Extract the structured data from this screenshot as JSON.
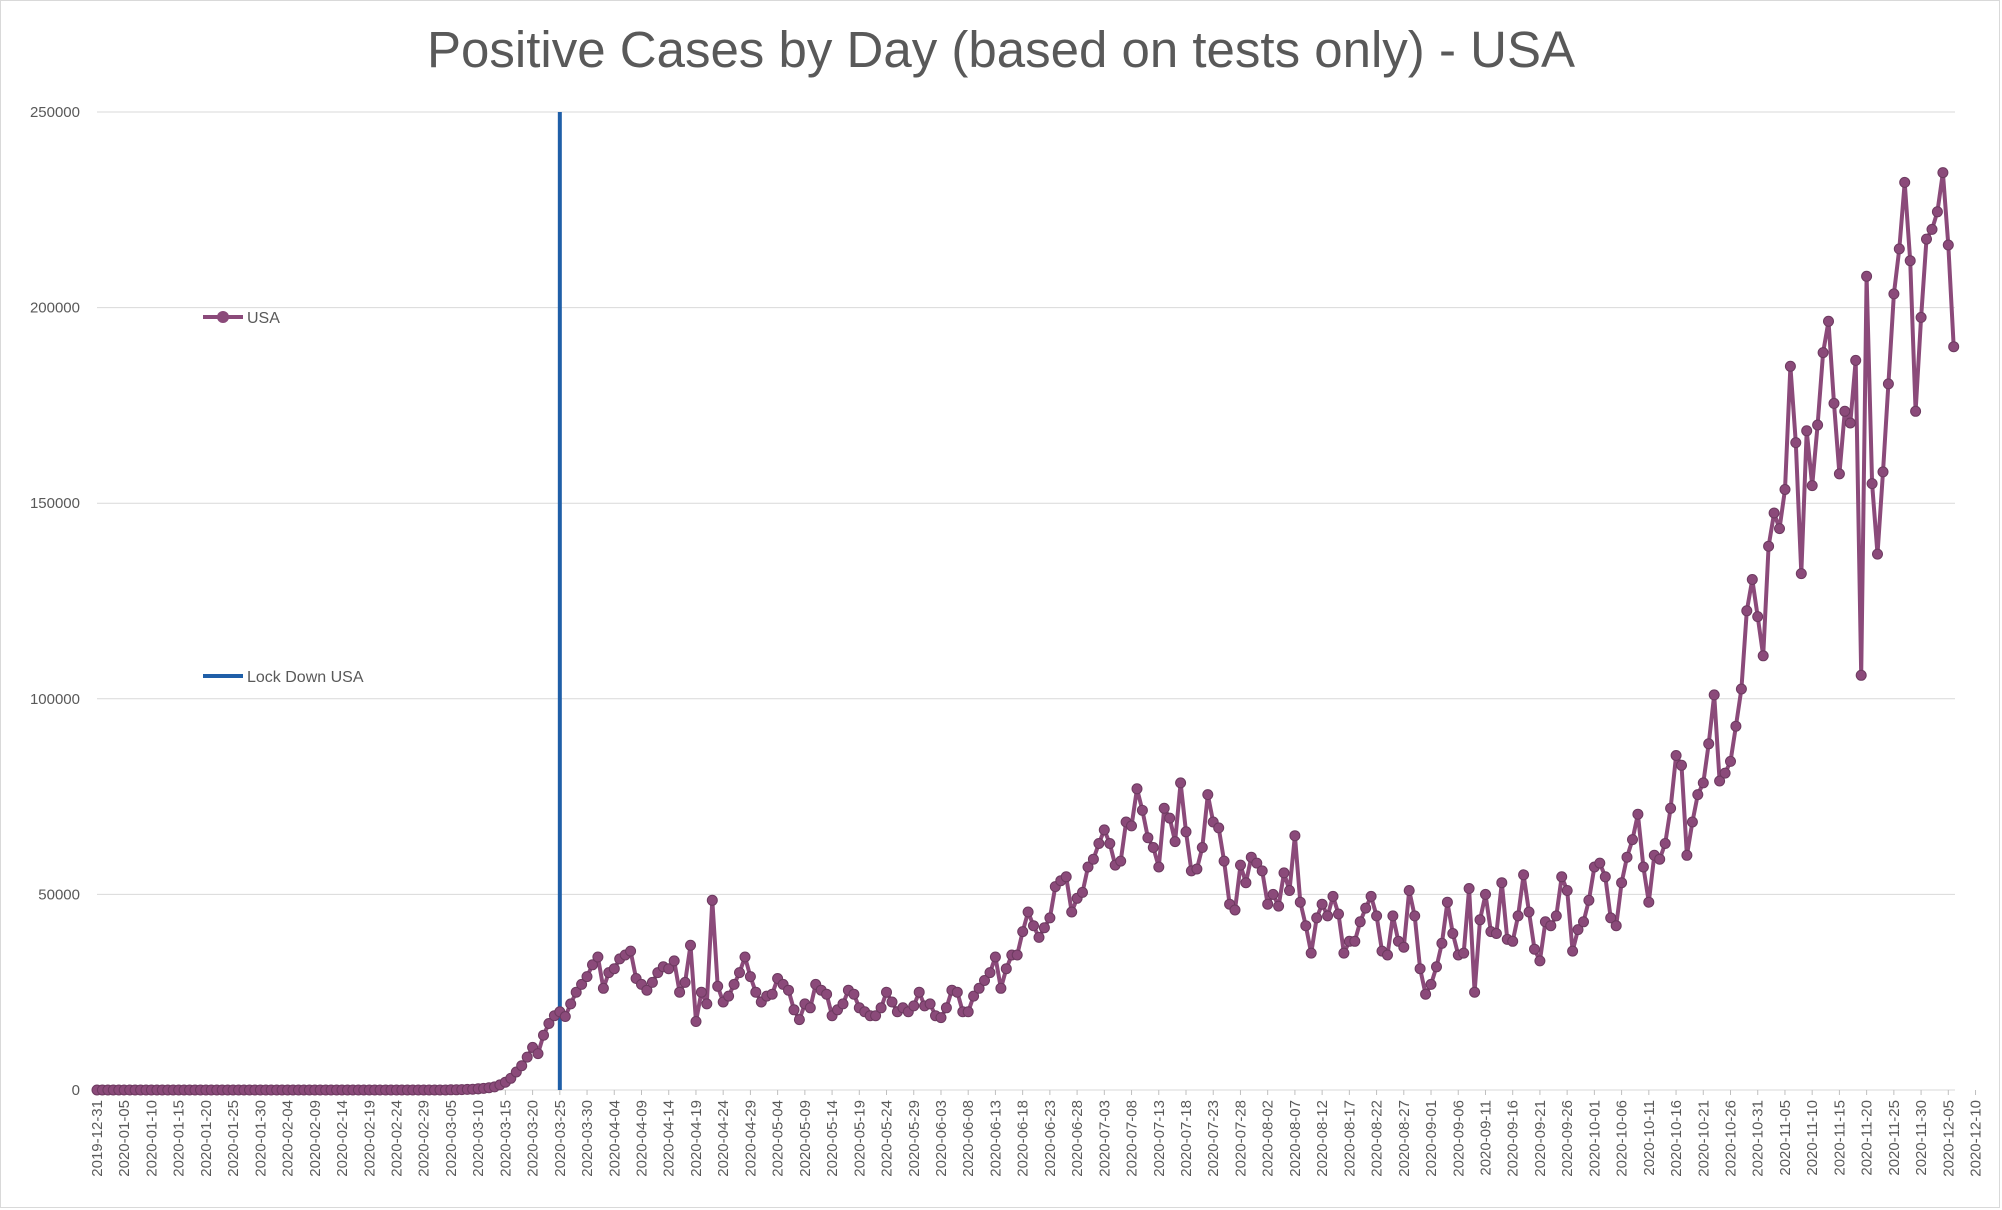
{
  "chart_data": {
    "type": "line",
    "title": "Positive Cases by Day (based on tests only) - USA",
    "xlabel": "",
    "ylabel": "",
    "ylim": [
      0,
      250000
    ],
    "y_ticks": [
      "0",
      "50000",
      "100000",
      "150000",
      "200000",
      "250000"
    ],
    "x_start": "2019-12-31",
    "x_ticks": [
      "2019-12-31",
      "2020-01-05",
      "2020-01-10",
      "2020-01-15",
      "2020-01-20",
      "2020-01-25",
      "2020-01-30",
      "2020-02-04",
      "2020-02-09",
      "2020-02-14",
      "2020-02-19",
      "2020-02-24",
      "2020-02-29",
      "2020-03-05",
      "2020-03-10",
      "2020-03-15",
      "2020-03-20",
      "2020-03-25",
      "2020-03-30",
      "2020-04-04",
      "2020-04-09",
      "2020-04-14",
      "2020-04-19",
      "2020-04-24",
      "2020-04-29",
      "2020-05-04",
      "2020-05-09",
      "2020-05-14",
      "2020-05-19",
      "2020-05-24",
      "2020-05-29",
      "2020-06-03",
      "2020-06-08",
      "2020-06-13",
      "2020-06-18",
      "2020-06-23",
      "2020-06-28",
      "2020-07-03",
      "2020-07-08",
      "2020-07-13",
      "2020-07-18",
      "2020-07-23",
      "2020-07-28",
      "2020-08-02",
      "2020-08-07",
      "2020-08-12",
      "2020-08-17",
      "2020-08-22",
      "2020-08-27",
      "2020-09-01",
      "2020-09-06",
      "2020-09-11",
      "2020-09-16",
      "2020-09-21",
      "2020-09-26",
      "2020-10-01",
      "2020-10-06",
      "2020-10-11",
      "2020-10-16",
      "2020-10-21",
      "2020-10-26",
      "2020-10-31",
      "2020-11-05",
      "2020-11-10",
      "2020-11-15",
      "2020-11-20",
      "2020-11-25",
      "2020-11-30",
      "2020-12-05",
      "2020-12-10"
    ],
    "grid": true,
    "legend_position": "left",
    "series": [
      {
        "name": "USA",
        "color": "#8b4a7a",
        "values": [
          0,
          0,
          0,
          0,
          0,
          0,
          0,
          0,
          0,
          0,
          0,
          0,
          0,
          0,
          0,
          0,
          0,
          0,
          0,
          0,
          0,
          0,
          0,
          0,
          0,
          0,
          0,
          0,
          0,
          0,
          0,
          0,
          0,
          0,
          0,
          0,
          0,
          0,
          0,
          0,
          0,
          0,
          0,
          0,
          0,
          0,
          0,
          0,
          0,
          0,
          0,
          0,
          0,
          0,
          0,
          0,
          0,
          0,
          0,
          0,
          0,
          0,
          0,
          0,
          0,
          50,
          50,
          100,
          150,
          200,
          300,
          400,
          600,
          800,
          1300,
          2000,
          3000,
          4600,
          6200,
          8400,
          10900,
          9300,
          14000,
          17000,
          19000,
          20000,
          18800,
          22000,
          25000,
          27000,
          29000,
          32000,
          34000,
          26000,
          30000,
          31000,
          33500,
          34500,
          35500,
          28500,
          27000,
          25500,
          27500,
          30000,
          31500,
          31000,
          33000,
          25000,
          27500,
          37000,
          17500,
          25000,
          22000,
          48500,
          26500,
          22500,
          24000,
          27000,
          30000,
          34000,
          29000,
          25000,
          22500,
          24000,
          24500,
          28500,
          27000,
          25500,
          20500,
          18000,
          22000,
          21000,
          27000,
          25500,
          24500,
          19000,
          20500,
          22000,
          25500,
          24500,
          21000,
          20000,
          19000,
          19000,
          21000,
          25000,
          22500,
          20000,
          21000,
          20000,
          21500,
          25000,
          21500,
          22000,
          19000,
          18500,
          21000,
          25500,
          25000,
          20000,
          20000,
          24000,
          26000,
          28000,
          30000,
          34000,
          26000,
          31000,
          34500,
          34500,
          40500,
          45500,
          42000,
          39000,
          41500,
          44000,
          52000,
          53500,
          54500,
          45500,
          49000,
          50500,
          57000,
          59000,
          63000,
          66500,
          63000,
          57500,
          58500,
          68500,
          67500,
          77000,
          71500,
          64500,
          62000,
          57000,
          72000,
          69500,
          63500,
          78500,
          66000,
          56000,
          56500,
          62000,
          75500,
          68500,
          67000,
          58500,
          47500,
          46000,
          57500,
          53000,
          59500,
          58000,
          56000,
          47500,
          50000,
          47000,
          55500,
          51000,
          65000,
          48000,
          42000,
          35000,
          44000,
          47500,
          44500,
          49500,
          45000,
          35000,
          38000,
          38000,
          43000,
          46500,
          49500,
          44500,
          35500,
          34500,
          44500,
          38000,
          36500,
          51000,
          44500,
          31000,
          24500,
          27000,
          31500,
          37500,
          48000,
          40000,
          34500,
          35000,
          51500,
          25000,
          43500,
          50000,
          40500,
          40000,
          53000,
          38500,
          38000,
          44500,
          55000,
          45500,
          36000,
          33000,
          43000,
          42000,
          44500,
          54500,
          51000,
          35500,
          41000,
          43000,
          48500,
          57000,
          58000,
          54500,
          44000,
          42000,
          53000,
          59500,
          64000,
          70500,
          57000,
          48000,
          60000,
          59000,
          63000,
          72000,
          85500,
          83000,
          60000,
          68500,
          75500,
          78500,
          88500,
          101000,
          79000,
          81000,
          84000,
          93000,
          102500,
          122500,
          130500,
          121000,
          111000,
          139000,
          147500,
          143500,
          153500,
          185000,
          165500,
          132000,
          168500,
          154500,
          170000,
          188500,
          196500,
          175500,
          157500,
          173500,
          170500,
          186500,
          106000,
          208000,
          155000,
          137000,
          158000,
          180500,
          203500,
          215000,
          232000,
          212000,
          173500,
          197500,
          217500,
          220000,
          224500,
          234500,
          216000,
          190000
        ]
      }
    ],
    "markers": [
      {
        "name": "Lock Down USA",
        "x": "2020-03-25",
        "color": "#1f5fa8"
      }
    ]
  }
}
